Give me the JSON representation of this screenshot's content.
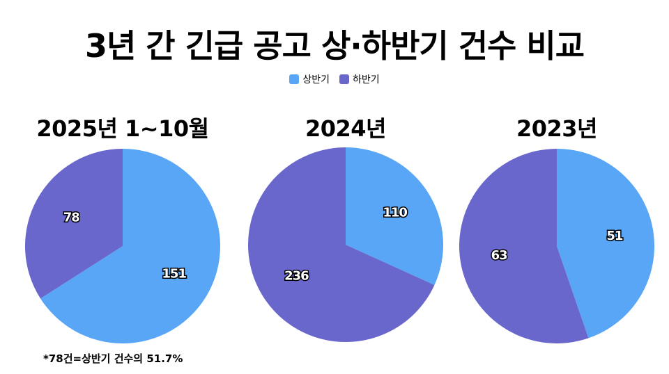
{
  "chart_data": {
    "title": "3년 간 긴급 공고 상·하반기 건수 비교",
    "type": "pie",
    "legend": {
      "placement": "top-center",
      "entries": [
        "상반기",
        "하반기"
      ]
    },
    "colors": {
      "상반기": "#58A6F5",
      "하반기": "#6A67CC"
    },
    "charts": [
      {
        "title": "2025년 1~10월",
        "slices": [
          {
            "name": "상반기",
            "value": 151
          },
          {
            "name": "하반기",
            "value": 78
          }
        ]
      },
      {
        "title": "2024년",
        "slices": [
          {
            "name": "상반기",
            "value": 110
          },
          {
            "name": "하반기",
            "value": 236
          }
        ]
      },
      {
        "title": "2023년",
        "slices": [
          {
            "name": "상반기",
            "value": 51
          },
          {
            "name": "하반기",
            "value": 63
          }
        ]
      }
    ],
    "note": "*78건=상반기 건수의 51.7%"
  }
}
